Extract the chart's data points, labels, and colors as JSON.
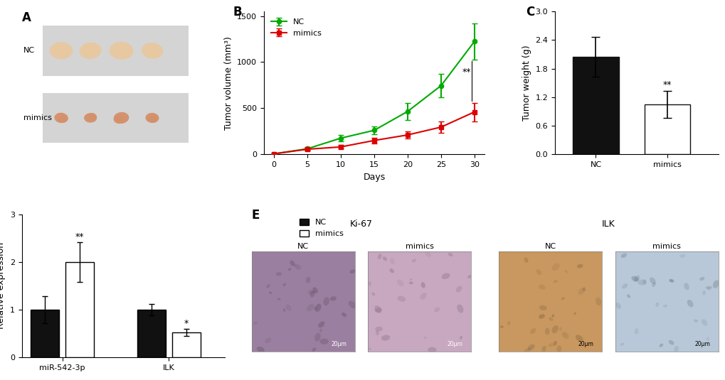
{
  "panel_B": {
    "days": [
      0,
      5,
      10,
      15,
      20,
      25,
      30
    ],
    "NC_volume": [
      5,
      60,
      175,
      260,
      465,
      745,
      1225
    ],
    "NC_err": [
      5,
      15,
      35,
      45,
      90,
      130,
      195
    ],
    "mimics_volume": [
      5,
      55,
      80,
      150,
      210,
      295,
      460
    ],
    "mimics_err": [
      5,
      15,
      20,
      30,
      40,
      60,
      100
    ],
    "NC_color": "#00aa00",
    "mimics_color": "#dd0000",
    "xlabel": "Days",
    "ylabel": "Tumor volume (mm³)",
    "ylim": [
      0,
      1550
    ],
    "yticks": [
      0,
      500,
      1000,
      1500
    ]
  },
  "panel_C": {
    "categories": [
      "NC",
      "mimics"
    ],
    "values": [
      2.05,
      1.05
    ],
    "errors": [
      0.42,
      0.28
    ],
    "bar_colors": [
      "#111111",
      "#ffffff"
    ],
    "bar_edgecolors": [
      "#111111",
      "#111111"
    ],
    "ylabel": "Tumor weight (g)",
    "ylim": [
      0,
      3.0
    ],
    "yticks": [
      0.0,
      0.6,
      1.2,
      1.8,
      2.4,
      3.0
    ]
  },
  "panel_D": {
    "groups": [
      "miR-542-3p",
      "ILK"
    ],
    "NC_values": [
      1.0,
      1.0
    ],
    "NC_errors": [
      0.28,
      0.12
    ],
    "mimics_values": [
      2.0,
      0.52
    ],
    "mimics_errors": [
      0.42,
      0.08
    ],
    "NC_color": "#111111",
    "mimics_color": "#ffffff",
    "ylabel": "Relative expression",
    "significance_mir": "**",
    "significance_ilk": "*",
    "ylim": [
      0,
      3
    ],
    "yticks": [
      0,
      1,
      2,
      3
    ]
  },
  "panel_A": {
    "bg_color": "#c8c8c8",
    "row1_bg": "#d8d8d8",
    "row2_bg": "#d0d0d0",
    "nc_tumor_color": "#e8c8a0",
    "mimics_tumor_color": "#d4906a"
  },
  "panel_E": {
    "ki67_nc_color": "#9b7fa0",
    "ki67_mimics_color": "#c8a8c0",
    "ilk_nc_color": "#c89860",
    "ilk_mimics_color": "#b8c8d8"
  },
  "label_fontsize": 12,
  "tick_fontsize": 8,
  "axis_label_fontsize": 9,
  "legend_fontsize": 8
}
